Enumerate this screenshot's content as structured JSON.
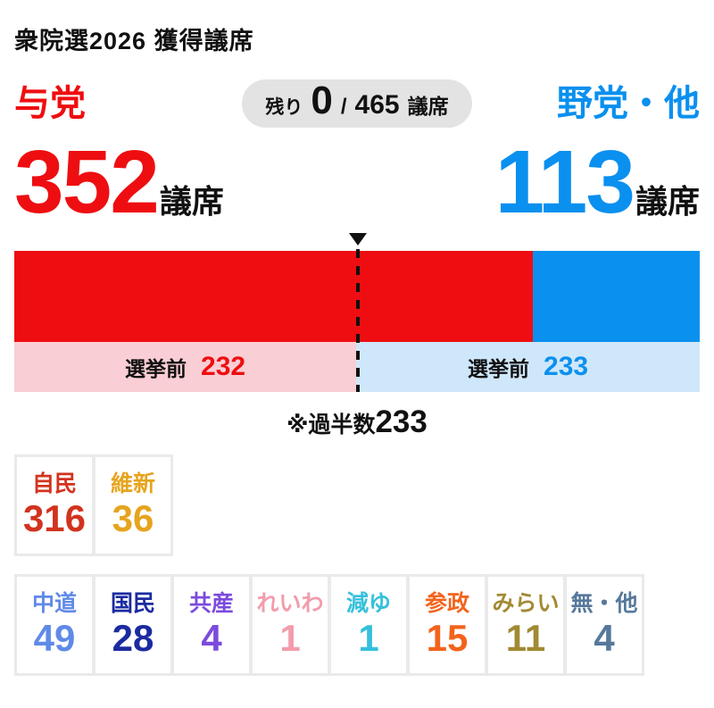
{
  "title": "衆院選2026 獲得議席",
  "header": {
    "ruling": {
      "label": "与党",
      "color": "#ee0e11"
    },
    "opposition": {
      "label": "野党・他",
      "color": "#0a90ef"
    },
    "badge": {
      "remaining_label": "残り",
      "remaining_value": "0",
      "slash": "/",
      "total_value": "465",
      "unit": "議席"
    }
  },
  "totals": {
    "ruling_seats": "352",
    "opposition_seats": "113",
    "unit": "議席"
  },
  "pre_election": {
    "label": "選挙前",
    "ruling_value": "232",
    "opposition_value": "233",
    "ruling_bg": "#f9ced4",
    "opposition_bg": "#cfe7fa"
  },
  "majority_note": {
    "prefix": "※過半数",
    "value": "233"
  },
  "parties": {
    "row1": [
      {
        "name": "自民",
        "seats": "316",
        "color": "#d2331e"
      },
      {
        "name": "維新",
        "seats": "36",
        "color": "#e6a41e"
      }
    ],
    "row2": [
      {
        "name": "中道",
        "seats": "49",
        "color": "#608ae8"
      },
      {
        "name": "国民",
        "seats": "28",
        "color": "#1b2ba0"
      },
      {
        "name": "共産",
        "seats": "4",
        "color": "#7b4bdd"
      },
      {
        "name": "れいわ",
        "seats": "1",
        "color": "#f29cac"
      },
      {
        "name": "減ゆ",
        "seats": "1",
        "color": "#36c0dc"
      },
      {
        "name": "参政",
        "seats": "15",
        "color": "#f2641c"
      },
      {
        "name": "みらい",
        "seats": "11",
        "color": "#a18a33"
      },
      {
        "name": "無・他",
        "seats": "4",
        "color": "#56789b"
      }
    ]
  },
  "chart_data": {
    "type": "bar",
    "title": "衆院選2026 獲得議席",
    "total_seats": 465,
    "majority": 233,
    "remaining": 0,
    "layout": "horizontal stacked seat bar with pre-election comparison bar below and dashed majority marker line",
    "series": [
      {
        "name": "与党",
        "current": 352,
        "pre_election": 232,
        "color": "#ee0e11",
        "pre_color": "#f9ced4"
      },
      {
        "name": "野党・他",
        "current": 113,
        "pre_election": 233,
        "color": "#0a90ef",
        "pre_color": "#cfe7fa"
      }
    ],
    "parties": [
      {
        "name": "自民",
        "seats": 316,
        "color": "#d2331e"
      },
      {
        "name": "維新",
        "seats": 36,
        "color": "#e6a41e"
      },
      {
        "name": "中道",
        "seats": 49,
        "color": "#608ae8"
      },
      {
        "name": "国民",
        "seats": 28,
        "color": "#1b2ba0"
      },
      {
        "name": "共産",
        "seats": 4,
        "color": "#7b4bdd"
      },
      {
        "name": "れいわ",
        "seats": 1,
        "color": "#f29cac"
      },
      {
        "name": "減ゆ",
        "seats": 1,
        "color": "#36c0dc"
      },
      {
        "name": "参政",
        "seats": 15,
        "color": "#f2641c"
      },
      {
        "name": "みらい",
        "seats": 11,
        "color": "#a18a33"
      },
      {
        "name": "無・他",
        "seats": 4,
        "color": "#56789b"
      }
    ]
  }
}
